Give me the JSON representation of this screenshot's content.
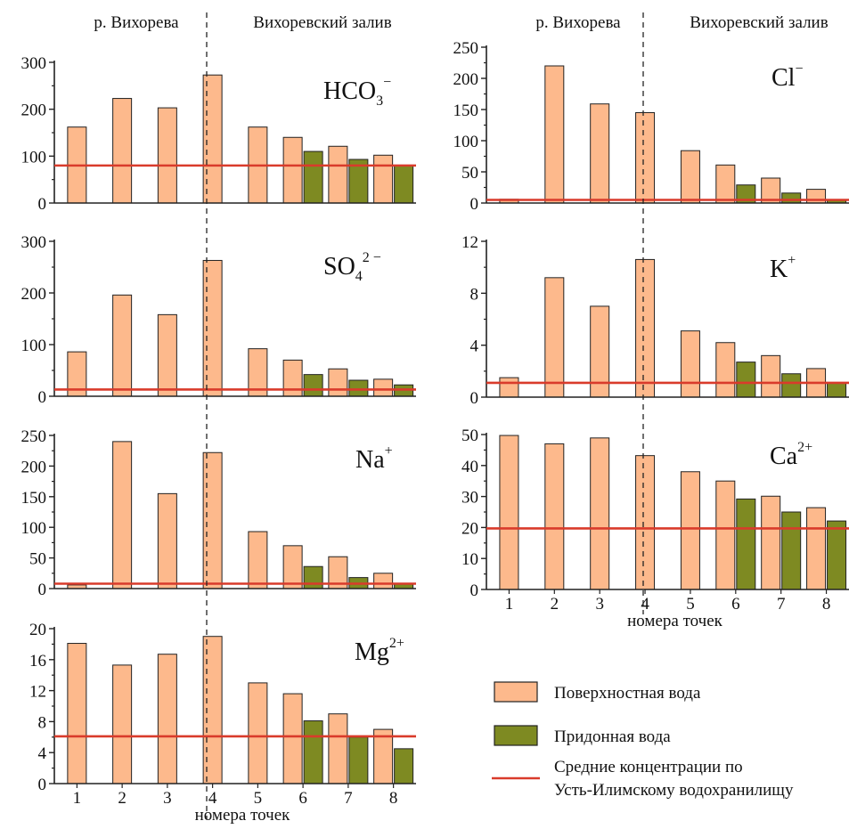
{
  "figure": {
    "regions": {
      "river": "р. Вихорева",
      "bay": "Вихоревский залив"
    },
    "xlabel": "номера точек",
    "legend": [
      {
        "label": "Поверхностная вода",
        "color": "#FDB98C",
        "kind": "bar"
      },
      {
        "label": "Придонная вода",
        "color": "#7E8A22",
        "kind": "bar"
      },
      {
        "label": "Средние концентрации по",
        "label2": "Усть-Илимскому водохранилищу",
        "color": "#D93B2B",
        "kind": "line"
      }
    ],
    "colors": {
      "surface": "#FDB98C",
      "bottom": "#7E8A22",
      "mean_line": "#D93B2B",
      "stroke": "#222222"
    }
  },
  "chart_data": [
    {
      "type": "bar",
      "ion": "HCO",
      "sub": "3",
      "sup": "−",
      "categories": [
        "1",
        "2",
        "3",
        "4",
        "5",
        "6",
        "7",
        "8"
      ],
      "ylim": [
        0,
        300
      ],
      "yticks": [
        0,
        100,
        200,
        300
      ],
      "series": [
        {
          "name": "Поверхностная вода",
          "values": [
            162,
            223,
            203,
            273,
            162,
            140,
            121,
            102
          ]
        },
        {
          "name": "Придонная вода",
          "values": [
            null,
            null,
            null,
            null,
            null,
            110,
            93,
            80
          ]
        }
      ],
      "mean": 80
    },
    {
      "type": "bar",
      "ion": "SO",
      "sub": "4",
      "sup": "2 −",
      "categories": [
        "1",
        "2",
        "3",
        "4",
        "5",
        "6",
        "7",
        "8"
      ],
      "ylim": [
        0,
        300
      ],
      "yticks": [
        0,
        100,
        200,
        300
      ],
      "series": [
        {
          "name": "Поверхностная вода",
          "values": [
            86,
            196,
            158,
            263,
            92,
            70,
            53,
            33
          ]
        },
        {
          "name": "Придонная вода",
          "values": [
            null,
            null,
            null,
            null,
            null,
            42,
            31,
            22
          ]
        }
      ],
      "mean": 13
    },
    {
      "type": "bar",
      "ion": "Na",
      "sub": "",
      "sup": "+",
      "categories": [
        "1",
        "2",
        "3",
        "4",
        "5",
        "6",
        "7",
        "8"
      ],
      "ylim": [
        0,
        250
      ],
      "yticks": [
        0,
        50,
        100,
        150,
        200,
        250
      ],
      "series": [
        {
          "name": "Поверхностная вода",
          "values": [
            6,
            240,
            155,
            222,
            93,
            70,
            52,
            25
          ]
        },
        {
          "name": "Придонная вода",
          "values": [
            null,
            null,
            null,
            null,
            null,
            36,
            18,
            8
          ]
        }
      ],
      "mean": 8
    },
    {
      "type": "bar",
      "ion": "Mg",
      "sub": "",
      "sup": "2+",
      "categories": [
        "1",
        "2",
        "3",
        "4",
        "5",
        "6",
        "7",
        "8"
      ],
      "ylim": [
        0,
        20
      ],
      "yticks": [
        0,
        4,
        8,
        12,
        16,
        20
      ],
      "series": [
        {
          "name": "Поверхностная вода",
          "values": [
            18.1,
            15.3,
            16.7,
            19.0,
            13.0,
            11.6,
            9.0,
            7.0
          ]
        },
        {
          "name": "Придонная вода",
          "values": [
            null,
            null,
            null,
            null,
            null,
            8.1,
            6.0,
            4.5
          ]
        }
      ],
      "mean": 6.1
    },
    {
      "type": "bar",
      "ion": "Cl",
      "sub": "",
      "sup": "−",
      "categories": [
        "1",
        "2",
        "3",
        "4",
        "5",
        "6",
        "7",
        "8"
      ],
      "ylim": [
        0,
        250
      ],
      "yticks": [
        0,
        50,
        100,
        150,
        200,
        250
      ],
      "series": [
        {
          "name": "Поверхностная вода",
          "values": [
            6,
            220,
            159,
            145,
            84,
            61,
            40,
            22
          ]
        },
        {
          "name": "Придонная вода",
          "values": [
            null,
            null,
            null,
            null,
            null,
            29,
            16,
            5
          ]
        }
      ],
      "mean": 5
    },
    {
      "type": "bar",
      "ion": "K",
      "sub": "",
      "sup": "+",
      "categories": [
        "1",
        "2",
        "3",
        "4",
        "5",
        "6",
        "7",
        "8"
      ],
      "ylim": [
        0,
        12
      ],
      "yticks": [
        0,
        4,
        8,
        12
      ],
      "series": [
        {
          "name": "Поверхностная вода",
          "values": [
            1.5,
            9.2,
            7.0,
            10.6,
            5.1,
            4.2,
            3.2,
            2.2
          ]
        },
        {
          "name": "Придонная вода",
          "values": [
            null,
            null,
            null,
            null,
            null,
            2.7,
            1.8,
            1.1
          ]
        }
      ],
      "mean": 1.1
    },
    {
      "type": "bar",
      "ion": "Ca",
      "sub": "",
      "sup": "2+",
      "categories": [
        "1",
        "2",
        "3",
        "4",
        "5",
        "6",
        "7",
        "8"
      ],
      "ylim": [
        0,
        50
      ],
      "yticks": [
        0,
        10,
        20,
        30,
        40,
        50
      ],
      "series": [
        {
          "name": "Поверхностная вода",
          "values": [
            49.7,
            47.0,
            48.9,
            43.2,
            38.0,
            35.0,
            30.1,
            26.4
          ]
        },
        {
          "name": "Придонная вода",
          "values": [
            null,
            null,
            null,
            null,
            null,
            29.2,
            25.0,
            22.1
          ]
        }
      ],
      "mean": 19.7
    }
  ]
}
